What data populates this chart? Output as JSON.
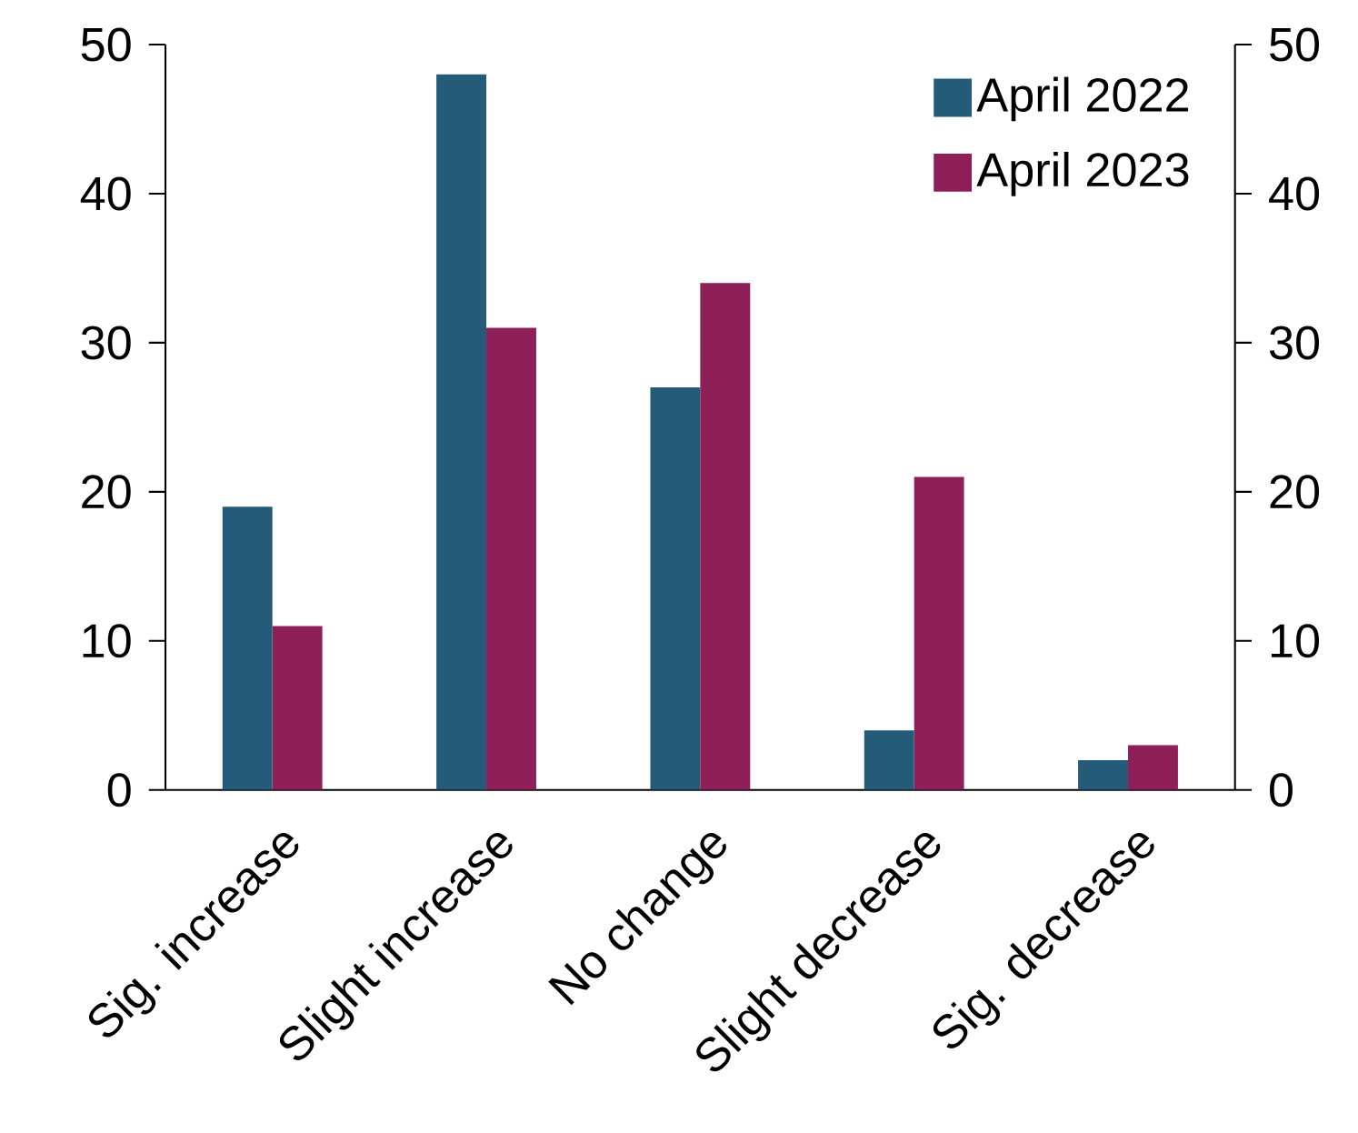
{
  "chart_data": {
    "type": "bar",
    "categories": [
      "Sig. increase",
      "Slight increase",
      "No change",
      "Slight decrease",
      "Sig. decrease"
    ],
    "series": [
      {
        "name": "April 2022",
        "color": "#235b79",
        "values": [
          19,
          48,
          27,
          4,
          2
        ]
      },
      {
        "name": "April 2023",
        "color": "#8f1f58",
        "values": [
          11,
          31,
          34,
          21,
          3
        ]
      }
    ],
    "ylim": [
      0,
      50
    ],
    "yticks": [
      0,
      10,
      20,
      30,
      40,
      50
    ],
    "y2lim": [
      0,
      50
    ],
    "y2ticks": [
      0,
      10,
      20,
      30,
      40,
      50
    ],
    "legend": "top right"
  }
}
